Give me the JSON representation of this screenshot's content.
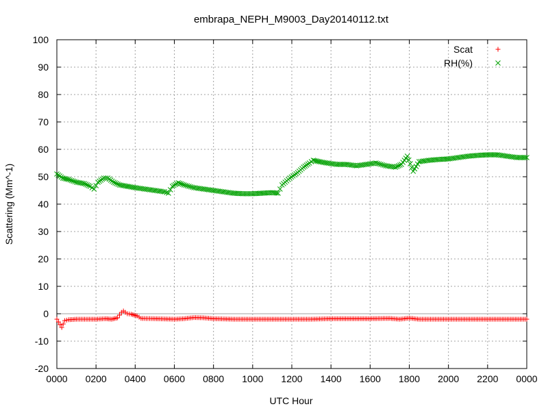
{
  "chart_data": {
    "type": "scatter",
    "title": "embrapa_NEPH_M9003_Day20140112.txt",
    "xlabel": "UTC Hour",
    "ylabel": "Scattering (Mm^-1)",
    "xlim": [
      0,
      24
    ],
    "ylim": [
      -20,
      100
    ],
    "x_ticks": [
      0,
      2,
      4,
      6,
      8,
      10,
      12,
      14,
      16,
      18,
      20,
      22,
      24
    ],
    "x_tick_labels": [
      "0000",
      "0200",
      "0400",
      "0600",
      "0800",
      "1000",
      "1200",
      "1400",
      "1600",
      "1800",
      "2000",
      "2200",
      "0000"
    ],
    "y_ticks": [
      -20,
      -10,
      0,
      10,
      20,
      30,
      40,
      50,
      60,
      70,
      80,
      90,
      100
    ],
    "y_tick_labels": [
      "-20",
      "-10",
      "0",
      "10",
      "20",
      "30",
      "40",
      "50",
      "60",
      "70",
      "80",
      "90",
      "100"
    ],
    "grid": true,
    "legend_position": "top-right",
    "series": [
      {
        "name": "Scat",
        "marker": "plus",
        "color": "#ff0000",
        "points": [
          [
            0.0,
            -2
          ],
          [
            0.25,
            -5
          ],
          [
            0.4,
            -2.5
          ],
          [
            0.6,
            -2.2
          ],
          [
            1.0,
            -2
          ],
          [
            1.5,
            -2
          ],
          [
            2.0,
            -2
          ],
          [
            2.5,
            -1.8
          ],
          [
            2.8,
            -2
          ],
          [
            3.1,
            -1.5
          ],
          [
            3.3,
            0.5
          ],
          [
            3.4,
            1.0
          ],
          [
            3.6,
            0
          ],
          [
            3.8,
            -0.2
          ],
          [
            4.1,
            -0.8
          ],
          [
            4.3,
            -1.7
          ],
          [
            5.0,
            -1.8
          ],
          [
            6.0,
            -2
          ],
          [
            6.5,
            -1.8
          ],
          [
            7.0,
            -1.4
          ],
          [
            7.5,
            -1.5
          ],
          [
            8.0,
            -1.8
          ],
          [
            9.0,
            -2
          ],
          [
            10.0,
            -2
          ],
          [
            11.0,
            -2
          ],
          [
            12.0,
            -2
          ],
          [
            13.0,
            -2
          ],
          [
            14.0,
            -1.8
          ],
          [
            15.0,
            -1.8
          ],
          [
            16.0,
            -1.8
          ],
          [
            17.0,
            -1.7
          ],
          [
            17.5,
            -2
          ],
          [
            18.0,
            -1.6
          ],
          [
            18.5,
            -2
          ],
          [
            19.0,
            -2
          ],
          [
            20.0,
            -2
          ],
          [
            21.0,
            -2
          ],
          [
            22.0,
            -2
          ],
          [
            23.0,
            -2
          ],
          [
            24.0,
            -2
          ]
        ]
      },
      {
        "name": "RH(%)",
        "marker": "cross",
        "color": "#00a000",
        "points": [
          [
            0.0,
            51
          ],
          [
            0.3,
            49.5
          ],
          [
            0.6,
            49
          ],
          [
            1.0,
            48
          ],
          [
            1.4,
            47.5
          ],
          [
            1.7,
            46.5
          ],
          [
            1.9,
            45.5
          ],
          [
            2.1,
            48
          ],
          [
            2.4,
            49.5
          ],
          [
            2.6,
            49.5
          ],
          [
            2.9,
            48
          ],
          [
            3.2,
            47
          ],
          [
            3.6,
            46.5
          ],
          [
            4.0,
            46
          ],
          [
            4.5,
            45.5
          ],
          [
            5.0,
            45
          ],
          [
            5.5,
            44.5
          ],
          [
            5.7,
            44
          ],
          [
            5.9,
            46.5
          ],
          [
            6.2,
            47.8
          ],
          [
            6.5,
            47
          ],
          [
            7.0,
            46
          ],
          [
            7.5,
            45.5
          ],
          [
            8.0,
            45
          ],
          [
            8.5,
            44.5
          ],
          [
            9.0,
            44
          ],
          [
            9.5,
            43.8
          ],
          [
            10.0,
            43.8
          ],
          [
            10.5,
            44
          ],
          [
            11.0,
            44.2
          ],
          [
            11.3,
            44
          ],
          [
            11.5,
            47
          ],
          [
            11.9,
            49.5
          ],
          [
            12.3,
            51.5
          ],
          [
            12.6,
            53.5
          ],
          [
            12.9,
            55
          ],
          [
            13.1,
            56
          ],
          [
            13.4,
            55.5
          ],
          [
            13.8,
            55
          ],
          [
            14.3,
            54.5
          ],
          [
            14.8,
            54.5
          ],
          [
            15.3,
            54
          ],
          [
            15.8,
            54.5
          ],
          [
            16.3,
            55
          ],
          [
            16.8,
            54
          ],
          [
            17.3,
            53.5
          ],
          [
            17.6,
            54.5
          ],
          [
            17.9,
            57.5
          ],
          [
            18.2,
            52
          ],
          [
            18.5,
            55.5
          ],
          [
            19.0,
            56
          ],
          [
            19.5,
            56.3
          ],
          [
            20.0,
            56.5
          ],
          [
            20.5,
            57
          ],
          [
            21.0,
            57.5
          ],
          [
            21.5,
            57.8
          ],
          [
            22.0,
            58
          ],
          [
            22.5,
            58
          ],
          [
            23.0,
            57.5
          ],
          [
            23.5,
            57
          ],
          [
            24.0,
            57
          ]
        ]
      }
    ]
  }
}
